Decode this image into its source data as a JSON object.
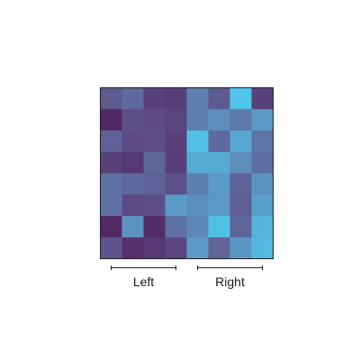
{
  "chart_data": {
    "type": "heatmap",
    "title": "",
    "xlabel": "",
    "ylabel": "",
    "rows": 8,
    "cols": 8,
    "column_groups": [
      {
        "label": "Left",
        "columns": [
          0,
          1,
          2,
          3
        ]
      },
      {
        "label": "Right",
        "columns": [
          4,
          5,
          6,
          7
        ]
      }
    ],
    "colorscale": [
      "#4e1f5a",
      "#5c4a85",
      "#5e71a3",
      "#5b9fcb",
      "#4dc8ec"
    ],
    "value_range": [
      0,
      1
    ],
    "values": [
      [
        0.35,
        0.45,
        0.2,
        0.18,
        0.58,
        0.35,
        0.98,
        0.2
      ],
      [
        0.05,
        0.28,
        0.25,
        0.22,
        0.58,
        0.65,
        0.55,
        0.72
      ],
      [
        0.4,
        0.25,
        0.28,
        0.2,
        0.95,
        0.45,
        0.8,
        0.52
      ],
      [
        0.2,
        0.15,
        0.42,
        0.18,
        0.82,
        0.82,
        0.65,
        0.48
      ],
      [
        0.5,
        0.45,
        0.4,
        0.3,
        0.58,
        0.72,
        0.4,
        0.68
      ],
      [
        0.5,
        0.25,
        0.28,
        0.72,
        0.65,
        0.72,
        0.38,
        0.75
      ],
      [
        0.06,
        0.68,
        0.08,
        0.5,
        0.62,
        0.96,
        0.42,
        0.88
      ],
      [
        0.32,
        0.1,
        0.15,
        0.22,
        0.72,
        0.42,
        0.7,
        0.9
      ]
    ]
  }
}
